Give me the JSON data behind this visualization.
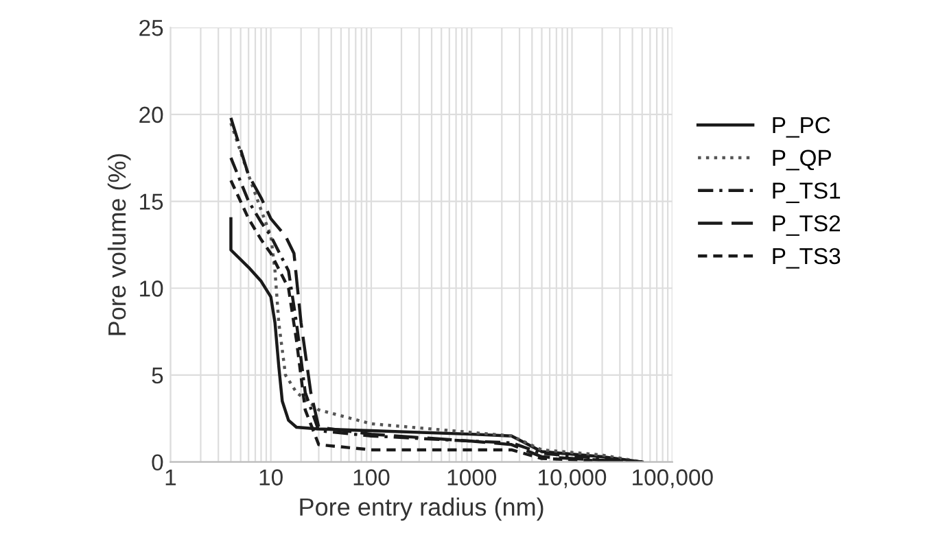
{
  "chart_data": {
    "type": "line",
    "xlabel": "Pore entry radius (nm)",
    "ylabel": "Pore volume (%)",
    "log": "x",
    "xlim": [
      1,
      100000
    ],
    "xticks": [
      1,
      10,
      100,
      1000,
      {
        "value": 10000,
        "label": "10,000"
      },
      {
        "value": 100000,
        "label": "100,000"
      }
    ],
    "ylim": [
      0,
      25
    ],
    "yticks": [
      0,
      5,
      10,
      15,
      20,
      25
    ],
    "grid": true,
    "legend": "right",
    "marker": "none",
    "series": [
      {
        "name": "P_PC",
        "color": "#1a1a1a",
        "line_style": "solid",
        "x": [
          4,
          4,
          6,
          8,
          10,
          11,
          12,
          13,
          15,
          18,
          30,
          100,
          1000,
          2500,
          5000,
          20000,
          50000
        ],
        "values": [
          14,
          12.2,
          11.2,
          10.4,
          9.5,
          8,
          5.5,
          3.5,
          2.4,
          2,
          1.9,
          1.8,
          1.6,
          1.5,
          0.6,
          0.3,
          0
        ]
      },
      {
        "name": "P_QP",
        "color": "#555555",
        "line_style": "dotted",
        "x": [
          4,
          6,
          8,
          10,
          11,
          12,
          14,
          18,
          30,
          100,
          1000,
          2500,
          5000,
          20000,
          50000
        ],
        "values": [
          19.5,
          16.5,
          14.5,
          13,
          11,
          8,
          5,
          4,
          3,
          2.2,
          1.7,
          1.5,
          0.7,
          0.4,
          0
        ]
      },
      {
        "name": "P_TS1",
        "color": "#1a1a1a",
        "line_style": "dashdot",
        "x": [
          4,
          6,
          8,
          10,
          15,
          18,
          22,
          30,
          100,
          1000,
          2500,
          5000,
          20000,
          50000
        ],
        "values": [
          17.5,
          15,
          13.8,
          13,
          11,
          8,
          4,
          1.8,
          1.5,
          1.2,
          1.1,
          0.5,
          0.2,
          0
        ]
      },
      {
        "name": "P_TS2",
        "color": "#1a1a1a",
        "line_style": "longdash",
        "x": [
          4,
          6,
          8,
          10,
          14,
          17,
          20,
          25,
          30,
          100,
          1000,
          2500,
          5000,
          20000,
          50000
        ],
        "values": [
          19.8,
          16.5,
          15.2,
          14,
          13,
          12,
          8,
          4,
          2,
          1.6,
          1.2,
          1,
          0.3,
          0.1,
          0
        ]
      },
      {
        "name": "P_TS3",
        "color": "#1a1a1a",
        "line_style": "dashed",
        "x": [
          4,
          6,
          8,
          10,
          15,
          18,
          22,
          30,
          100,
          1000,
          2500,
          5000,
          40000
        ],
        "values": [
          16.2,
          14,
          12.8,
          12,
          10,
          7,
          3,
          1,
          0.7,
          0.7,
          0.7,
          0.2,
          0
        ]
      }
    ]
  }
}
